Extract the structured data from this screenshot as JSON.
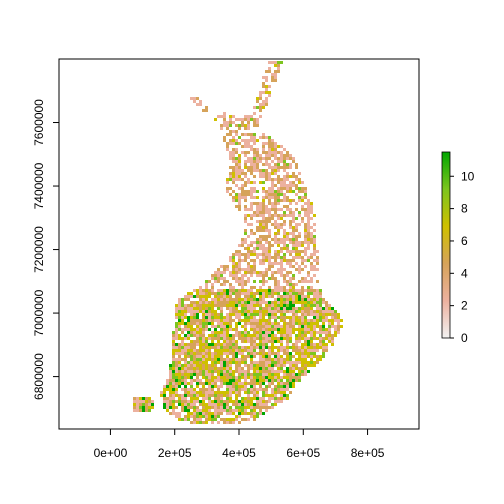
{
  "chart_data": {
    "type": "heatmap",
    "x": {
      "ticks": [
        0,
        200000,
        400000,
        600000,
        800000
      ],
      "tick_labels": [
        "0e+00",
        "2e+05",
        "4e+05",
        "6e+05",
        "8e+05"
      ],
      "range": [
        -160000,
        960000
      ]
    },
    "y": {
      "ticks": [
        6800000,
        7000000,
        7200000,
        7400000,
        7600000
      ],
      "tick_labels": [
        "6800000",
        "7000000",
        "7200000",
        "7400000",
        "7600000"
      ],
      "range": [
        6635000,
        7800000
      ]
    },
    "legend": {
      "position": "right",
      "ticks": [
        0,
        2,
        4,
        6,
        8,
        10
      ],
      "tick_labels": [
        "0",
        "2",
        "4",
        "6",
        "8",
        "10"
      ],
      "range": [
        0,
        11.5
      ],
      "colors": [
        "#f2f2f2",
        "#ecb19f",
        "#d6a35a",
        "#cfc000",
        "#7dc51f",
        "#00a600"
      ]
    },
    "colors": {
      "terrain_scale": [
        "#f2f2f2",
        "#ecb19f",
        "#d6a35a",
        "#cfc000",
        "#7dc51f",
        "#00a600"
      ]
    }
  }
}
